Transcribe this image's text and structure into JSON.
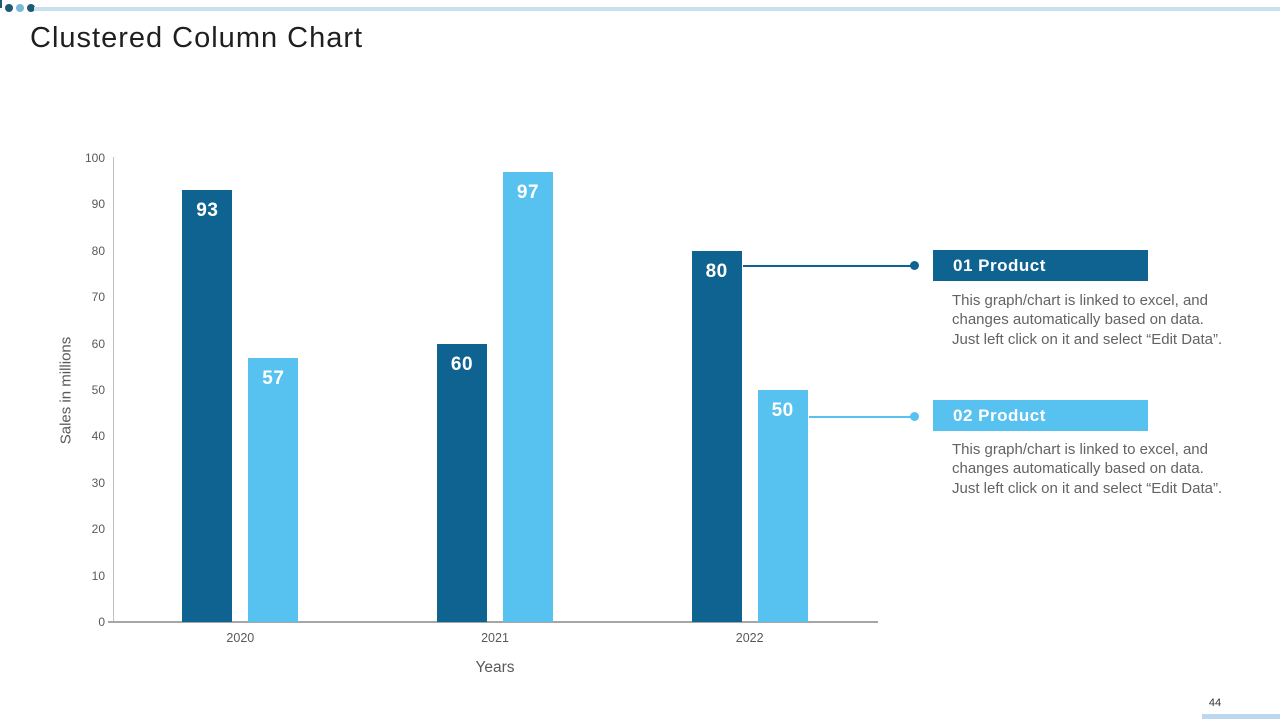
{
  "slide": {
    "title": "Clustered Column Chart",
    "page_number": "44"
  },
  "accent_colors": {
    "dark_blue": "#0f6391",
    "light_blue": "#57c1f0",
    "top_line_blue": "#c9e0ef",
    "footer_strip_blue": "#bdd7ee",
    "text_gray": "#595959"
  },
  "chart_data": {
    "type": "bar",
    "title": "",
    "categories": [
      "2020",
      "2021",
      "2022"
    ],
    "series": [
      {
        "name": "01 Product",
        "color": "#0f6391",
        "values": [
          93,
          60,
          80
        ]
      },
      {
        "name": "02 Product",
        "color": "#57c1f0",
        "values": [
          57,
          97,
          50
        ]
      }
    ],
    "xlabel": "Years",
    "ylabel": "Sales in millions",
    "ylim": [
      0,
      100
    ],
    "ytick_step": 10,
    "grid": false,
    "legend_position": "none",
    "data_labels": true
  },
  "callouts": [
    {
      "heading": "01 Product",
      "color": "#0f6391",
      "body_lines": [
        "This graph/chart is linked to excel, and",
        "changes automatically based on data.",
        "Just left click on it and select “Edit Data”."
      ]
    },
    {
      "heading": "02 Product",
      "color": "#57c1f0",
      "body_lines": [
        "This graph/chart is linked to excel, and",
        "changes automatically based on data.",
        "Just left click on it and select “Edit Data”."
      ]
    }
  ]
}
